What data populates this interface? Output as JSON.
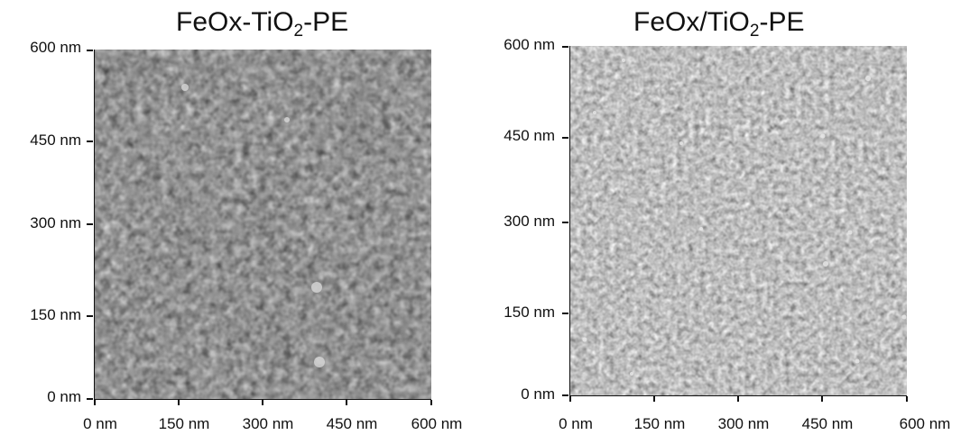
{
  "panels": [
    {
      "title_main": "FeOx-TiO",
      "title_sub": "2",
      "title_tail": "-PE",
      "y_ticks": [
        "600 nm",
        "450 nm",
        "300 nm",
        "150 nm",
        "0 nm"
      ],
      "x_ticks": [
        "0 nm",
        "150 nm",
        "300 nm",
        "450 nm",
        "600 nm"
      ],
      "image": "AFM height image, grayscale granular surface with larger agglomerated grains"
    },
    {
      "title_main": "FeOx/TiO",
      "title_sub": "2",
      "title_tail": "-PE",
      "y_ticks": [
        "600 nm",
        "450 nm",
        "300 nm",
        "150 nm",
        "0 nm"
      ],
      "x_ticks": [
        "0 nm",
        "150 nm",
        "300 nm",
        "450 nm",
        "600 nm"
      ],
      "image": "AFM height image, grayscale finer granular surface with small bright spots"
    }
  ],
  "colors": {
    "axis": "#111111",
    "image_dark": "#2a2a2a",
    "image_light": "#9a9a9a"
  }
}
